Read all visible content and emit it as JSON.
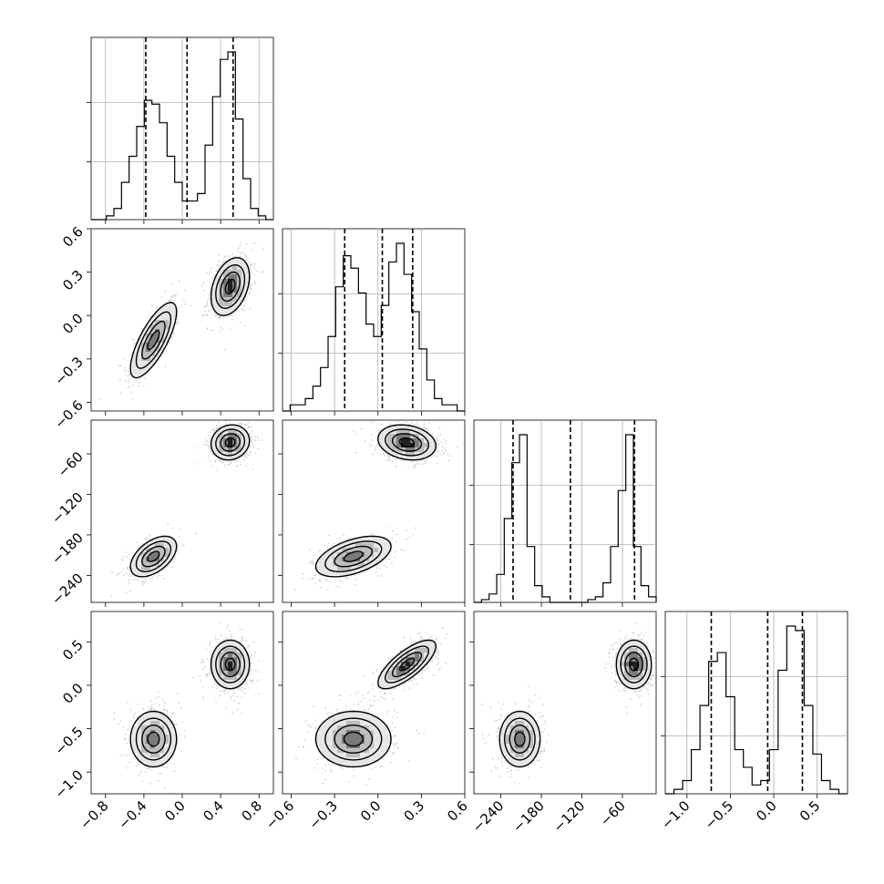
{
  "chart_data": {
    "type": "corner",
    "title": "",
    "grid": true,
    "parameters": 4,
    "axes": [
      {
        "lim": [
          -0.95,
          0.95
        ],
        "ticks": [
          -0.8,
          -0.4,
          0.0,
          0.4,
          0.8
        ],
        "tick_labels": [
          "−0.8",
          "−0.4",
          "0.0",
          "0.4",
          "0.8"
        ]
      },
      {
        "lim": [
          -0.66,
          0.6
        ],
        "ticks": [
          -0.6,
          -0.3,
          0.0,
          0.3,
          0.6
        ],
        "tick_labels": [
          "−0.6",
          "−0.3",
          "0.0",
          "0.3",
          "0.6"
        ]
      },
      {
        "lim": [
          -280,
          -10
        ],
        "ticks": [
          -240,
          -180,
          -120,
          -60
        ],
        "tick_labels": [
          "−240",
          "−180",
          "−120",
          "−60"
        ]
      },
      {
        "lim": [
          -1.25,
          0.85
        ],
        "ticks": [
          -1.0,
          -0.5,
          0.0,
          0.5
        ],
        "tick_labels": [
          "−1.0",
          "−0.5",
          "0.0",
          "0.5"
        ]
      }
    ],
    "quantiles": [
      [
        -0.38,
        0.05,
        0.53
      ],
      [
        -0.23,
        0.03,
        0.24
      ],
      [
        -222,
        -137,
        -42
      ],
      [
        -0.72,
        -0.07,
        0.33
      ]
    ],
    "histograms": [
      {
        "edges": [
          -0.95,
          0.95
        ],
        "counts": [
          0,
          0,
          1,
          3,
          10,
          17,
          25,
          32,
          31,
          26,
          17,
          10,
          5,
          5,
          7,
          20,
          33,
          43,
          45,
          27,
          11,
          3,
          1,
          0
        ]
      },
      {
        "edges": [
          -0.66,
          0.6
        ],
        "counts": [
          0,
          1,
          1,
          2,
          4,
          7,
          12,
          20,
          25,
          23,
          19,
          14,
          12,
          17,
          24,
          27,
          22,
          16,
          10,
          5,
          2,
          1,
          1,
          0
        ]
      },
      {
        "edges": [
          -280,
          -10
        ],
        "counts": [
          0,
          1,
          3,
          10,
          30,
          50,
          60,
          20,
          6,
          2,
          0,
          0,
          0,
          0,
          0,
          1,
          2,
          7,
          20,
          40,
          60,
          20,
          6,
          2
        ]
      },
      {
        "edges": [
          -1.25,
          0.85
        ],
        "counts": [
          0,
          1,
          3,
          10,
          20,
          30,
          32,
          22,
          10,
          6,
          2,
          3,
          10,
          28,
          38,
          37,
          20,
          9,
          3,
          1,
          0
        ]
      }
    ],
    "modes": [
      {
        "weight": 0.45,
        "mean": [
          -0.3,
          -0.17,
          -212,
          -0.62
        ],
        "sd": [
          0.12,
          0.13,
          15,
          0.16
        ],
        "corr": [
          [
            1,
            0.75,
            0.5,
            0
          ],
          [
            0.75,
            1,
            0.5,
            0
          ],
          [
            0.5,
            0.5,
            1,
            0
          ],
          [
            0,
            0,
            0,
            1
          ]
        ]
      },
      {
        "weight": 0.55,
        "mean": [
          0.5,
          0.2,
          -43,
          0.24
        ],
        "sd": [
          0.1,
          0.1,
          13,
          0.14
        ],
        "corr": [
          [
            1,
            0.35,
            0.1,
            0
          ],
          [
            0.35,
            1,
            -0.2,
            0.75
          ],
          [
            0.1,
            -0.2,
            1,
            0
          ],
          [
            0,
            0.75,
            0,
            1
          ]
        ]
      }
    ],
    "contour_levels": [
      0.12,
      0.4,
      0.7,
      0.92
    ]
  }
}
